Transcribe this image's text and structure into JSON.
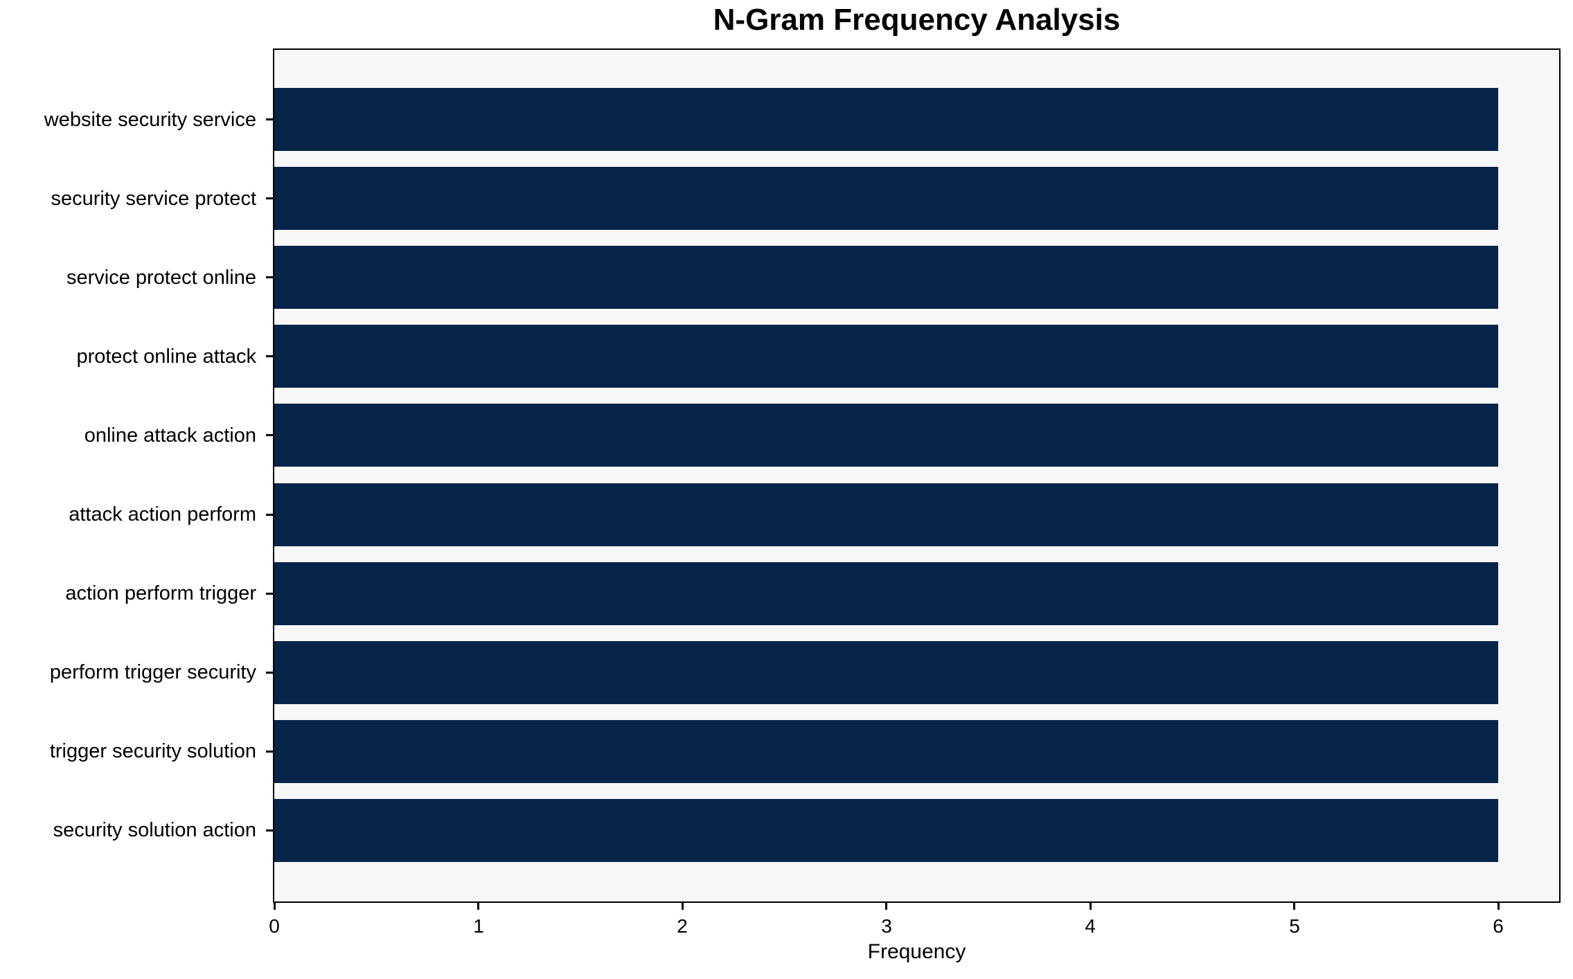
{
  "chart_data": {
    "type": "bar",
    "orientation": "horizontal",
    "title": "N-Gram Frequency Analysis",
    "xlabel": "Frequency",
    "ylabel": "",
    "categories": [
      "website security service",
      "security service protect",
      "service protect online",
      "protect online attack",
      "online attack action",
      "attack action perform",
      "action perform trigger",
      "perform trigger security",
      "trigger security solution",
      "security solution action"
    ],
    "values": [
      6,
      6,
      6,
      6,
      6,
      6,
      6,
      6,
      6,
      6
    ],
    "xticks": [
      0,
      1,
      2,
      3,
      4,
      5,
      6
    ],
    "xlim": [
      0,
      6.3
    ],
    "grid": false,
    "legend": false,
    "bar_color": "#072449",
    "plot_background": "#f7f7f7",
    "figure_background": "#ffffff",
    "spine_color": "#000000"
  }
}
